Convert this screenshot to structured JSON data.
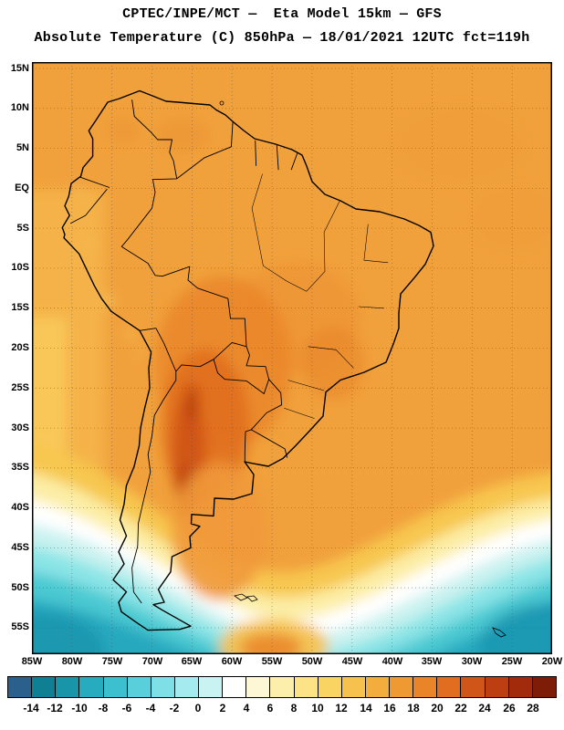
{
  "header": {
    "title_line1": "CPTEC/INPE/MCT —  Eta Model 15km — GFS",
    "title_line2": "Absolute Temperature (C) 850hPa — 18/01/2021 12UTC fct=119h"
  },
  "map_axes": {
    "lat_labels": [
      "15N",
      "10N",
      "5N",
      "EQ",
      "5S",
      "10S",
      "15S",
      "20S",
      "25S",
      "30S",
      "35S",
      "40S",
      "45S",
      "50S",
      "55S"
    ],
    "lon_labels": [
      "85W",
      "80W",
      "75W",
      "70W",
      "65W",
      "60W",
      "55W",
      "50W",
      "45W",
      "40W",
      "35W",
      "30W",
      "25W",
      "20W"
    ]
  },
  "colorbar": {
    "unit": "C",
    "labels": [
      "-14",
      "-12",
      "-10",
      "-8",
      "-6",
      "-4",
      "-2",
      "0",
      "2",
      "4",
      "6",
      "8",
      "10",
      "12",
      "14",
      "16",
      "18",
      "20",
      "22",
      "24",
      "26",
      "28"
    ],
    "colors": [
      "#2b5f8c",
      "#0f7f93",
      "#1995a9",
      "#27abbe",
      "#3cbfcf",
      "#58cfdb",
      "#7fdfe6",
      "#a5eaee",
      "#c9f2f3",
      "#ffffff",
      "#fdf7d5",
      "#fcefab",
      "#fbe386",
      "#f9d463",
      "#f6c14c",
      "#f3ad3c",
      "#ef9932",
      "#e98429",
      "#e06d20",
      "#d05518",
      "#bd3f11",
      "#a22b0c",
      "#7d1d07"
    ]
  },
  "field_palette": {
    "base_orange": "#f1a13c",
    "warm_core": "#cd5012",
    "hot_spot": "#b83c0c",
    "yellow_band": "#f7c74f",
    "white_band": "#ffffff",
    "cyan_band": "#8ae4e6",
    "deep_teal": "#1b93ae"
  }
}
